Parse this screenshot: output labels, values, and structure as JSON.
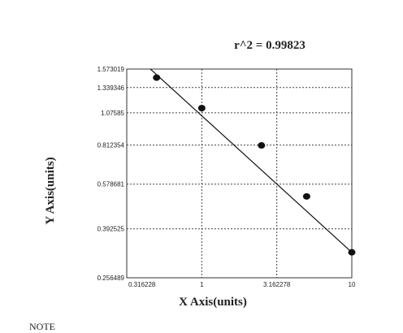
{
  "chart_data": {
    "type": "scatter",
    "title": "r^2 = 0.99823",
    "xlabel": "X Axis(units)",
    "ylabel": "Y Axis(units)",
    "x_scale": "log",
    "y_scale": "log",
    "xlim": [
      0.316228,
      10
    ],
    "ylim": [
      0.256489,
      1.573019
    ],
    "x_ticks": [
      {
        "value": 0.316228,
        "label": "0.316228"
      },
      {
        "value": 1,
        "label": "1"
      },
      {
        "value": 3.162278,
        "label": "3.162278"
      },
      {
        "value": 10,
        "label": "10"
      }
    ],
    "y_ticks": [
      {
        "value": 1.573019,
        "label": "1.573019"
      },
      {
        "value": 1.339346,
        "label": "1.339346"
      },
      {
        "value": 1.07585,
        "label": "1.07585"
      },
      {
        "value": 0.812354,
        "label": "0.812354"
      },
      {
        "value": 0.578681,
        "label": "0.578681"
      },
      {
        "value": 0.392525,
        "label": "0.392525"
      },
      {
        "value": 0.256489,
        "label": "0.256489"
      }
    ],
    "series": [
      {
        "points": [
          {
            "x": 0.5,
            "y": 1.46
          },
          {
            "x": 1.0,
            "y": 1.12
          },
          {
            "x": 2.5,
            "y": 0.81
          },
          {
            "x": 5.0,
            "y": 0.52
          },
          {
            "x": 10.0,
            "y": 0.32
          }
        ],
        "fit_line": {
          "x": [
            0.4,
            10.0
          ],
          "y": [
            1.68,
            0.32
          ]
        }
      }
    ],
    "grid": true,
    "legend": "none"
  },
  "footer": {
    "note": "NOTE"
  }
}
